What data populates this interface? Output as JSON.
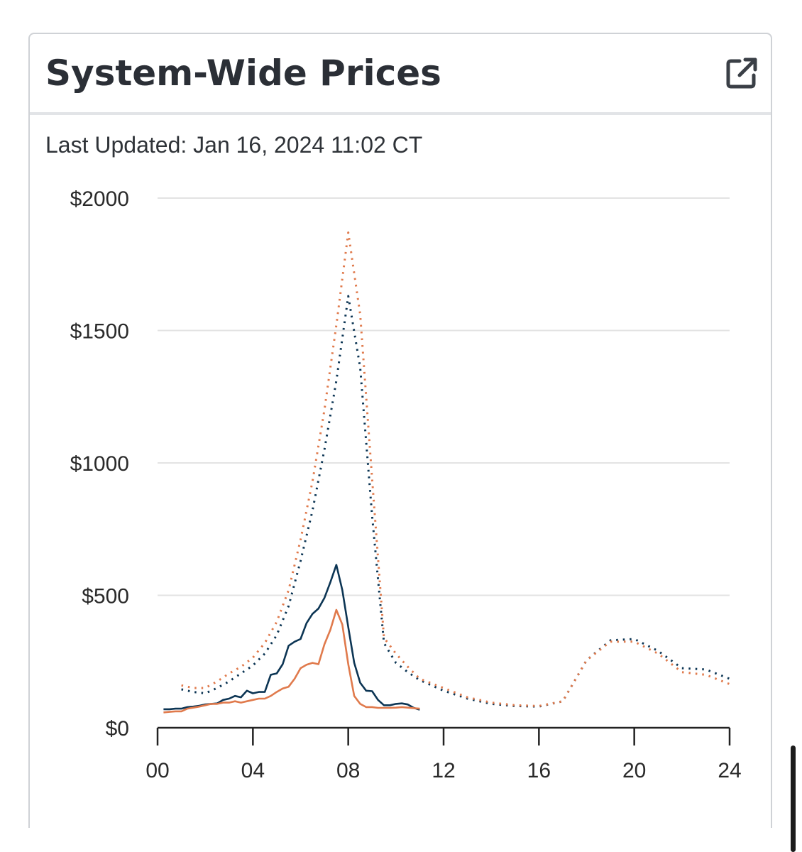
{
  "header": {
    "title": "System-Wide Prices",
    "external_link_icon": "external-link-icon"
  },
  "last_updated": "Last Updated: Jan 16, 2024 11:02 CT",
  "colors": {
    "navy": "#0c3554",
    "orange": "#e07a4c",
    "grid": "#e3e3e3",
    "axis": "#222222",
    "text": "#2f3338"
  },
  "chart_data": {
    "type": "line",
    "title": "",
    "xlabel": "",
    "ylabel": "",
    "xlim": [
      0,
      24
    ],
    "ylim": [
      0,
      2000
    ],
    "x_ticks": [
      "00",
      "04",
      "08",
      "12",
      "16",
      "20",
      "24"
    ],
    "y_ticks": [
      "$0",
      "$500",
      "$1000",
      "$1500",
      "$2000"
    ],
    "grid": "horizontal",
    "series": [
      {
        "color": "#0c3554",
        "style": "solid",
        "x": [
          0.25,
          0.5,
          0.75,
          1.0,
          1.25,
          1.5,
          1.75,
          2.0,
          2.25,
          2.5,
          2.75,
          3.0,
          3.25,
          3.5,
          3.75,
          4.0,
          4.25,
          4.5,
          4.75,
          5.0,
          5.25,
          5.5,
          5.75,
          6.0,
          6.25,
          6.5,
          6.75,
          7.0,
          7.25,
          7.5,
          7.75,
          8.0,
          8.25,
          8.5,
          8.75,
          9.0,
          9.25,
          9.5,
          9.75,
          10.0,
          10.25,
          10.5,
          10.75,
          11.0
        ],
        "values": [
          70,
          70,
          72,
          72,
          78,
          80,
          83,
          88,
          90,
          92,
          105,
          110,
          120,
          115,
          140,
          130,
          135,
          135,
          200,
          205,
          240,
          310,
          325,
          335,
          395,
          430,
          450,
          490,
          550,
          615,
          520,
          380,
          245,
          170,
          140,
          138,
          105,
          85,
          85,
          90,
          92,
          88,
          75,
          68
        ]
      },
      {
        "color": "#e07a4c",
        "style": "solid",
        "x": [
          0.25,
          0.5,
          0.75,
          1.0,
          1.25,
          1.5,
          1.75,
          2.0,
          2.25,
          2.5,
          2.75,
          3.0,
          3.25,
          3.5,
          3.75,
          4.0,
          4.25,
          4.5,
          4.75,
          5.0,
          5.25,
          5.5,
          5.75,
          6.0,
          6.25,
          6.5,
          6.75,
          7.0,
          7.25,
          7.5,
          7.75,
          8.0,
          8.25,
          8.5,
          8.75,
          9.0,
          9.25,
          9.5,
          9.75,
          10.0,
          10.25,
          10.5,
          10.75,
          11.0
        ],
        "values": [
          58,
          60,
          62,
          62,
          72,
          76,
          80,
          85,
          90,
          90,
          95,
          95,
          100,
          95,
          100,
          105,
          110,
          110,
          120,
          135,
          148,
          155,
          185,
          225,
          238,
          245,
          240,
          315,
          370,
          445,
          390,
          240,
          120,
          90,
          78,
          78,
          75,
          75,
          75,
          76,
          78,
          76,
          74,
          72
        ]
      },
      {
        "color": "#0c3554",
        "style": "dotted",
        "x": [
          1,
          1.5,
          2,
          2.5,
          3,
          3.5,
          4,
          4.5,
          5,
          5.5,
          6,
          6.5,
          7,
          7.5,
          8,
          8.5,
          9,
          9.5,
          10,
          10.5,
          11,
          12,
          13,
          14,
          15,
          16,
          17,
          18,
          19,
          20,
          21,
          22,
          23,
          24
        ],
        "values": [
          145,
          135,
          130,
          150,
          175,
          205,
          235,
          280,
          350,
          460,
          630,
          820,
          1050,
          1310,
          1630,
          1360,
          800,
          320,
          245,
          210,
          180,
          140,
          110,
          90,
          82,
          80,
          100,
          255,
          330,
          335,
          290,
          225,
          220,
          185
        ]
      },
      {
        "color": "#e07a4c",
        "style": "dotted",
        "x": [
          1,
          1.5,
          2,
          2.5,
          3,
          3.5,
          4,
          4.5,
          5,
          5.5,
          6,
          6.5,
          7,
          7.5,
          8,
          8.5,
          9,
          9.5,
          10,
          10.5,
          11,
          12,
          13,
          14,
          15,
          16,
          17,
          18,
          19,
          20,
          21,
          22,
          23,
          24
        ],
        "values": [
          160,
          150,
          150,
          175,
          205,
          230,
          265,
          320,
          400,
          520,
          710,
          930,
          1200,
          1520,
          1870,
          1560,
          940,
          340,
          280,
          230,
          185,
          150,
          115,
          95,
          85,
          82,
          100,
          255,
          325,
          325,
          280,
          210,
          200,
          165
        ]
      }
    ]
  }
}
